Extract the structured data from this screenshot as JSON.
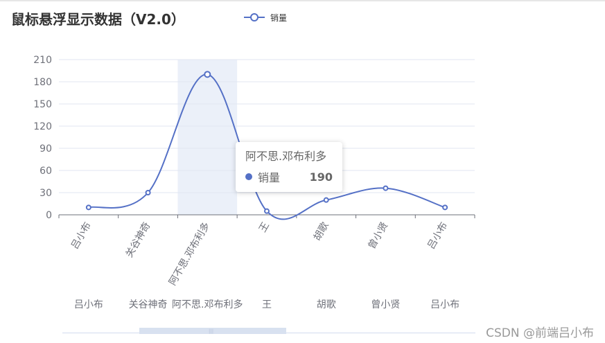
{
  "title": "鼠标悬浮显示数据（V2.0）",
  "legend": {
    "label": "销量",
    "color": "#5470c6"
  },
  "chart_data": {
    "type": "line",
    "smooth": true,
    "categories": [
      "吕小布",
      "关谷神奇",
      "阿不思.邓布利多",
      "王",
      "胡歌",
      "曾小贤",
      "吕小布"
    ],
    "series": [
      {
        "name": "销量",
        "values": [
          10,
          30,
          190,
          5,
          20,
          36,
          10
        ],
        "color": "#5470c6"
      }
    ],
    "ylim": [
      0,
      210
    ],
    "yticks": [
      0,
      30,
      60,
      90,
      120,
      150,
      180,
      210
    ],
    "grid": true,
    "legend_position": "top-left",
    "axis_label_rotate": 60,
    "highlighted_category_index": 2,
    "secondary_axis_labels": [
      "吕小布",
      "关谷神奇",
      "阿不思.邓布利多",
      "王",
      "胡歌",
      "曾小贤",
      "吕小布"
    ]
  },
  "tooltip": {
    "title": "阿不思.邓布利多",
    "series_name": "销量",
    "value": "190"
  },
  "watermark": "CSDN @前端吕小布"
}
